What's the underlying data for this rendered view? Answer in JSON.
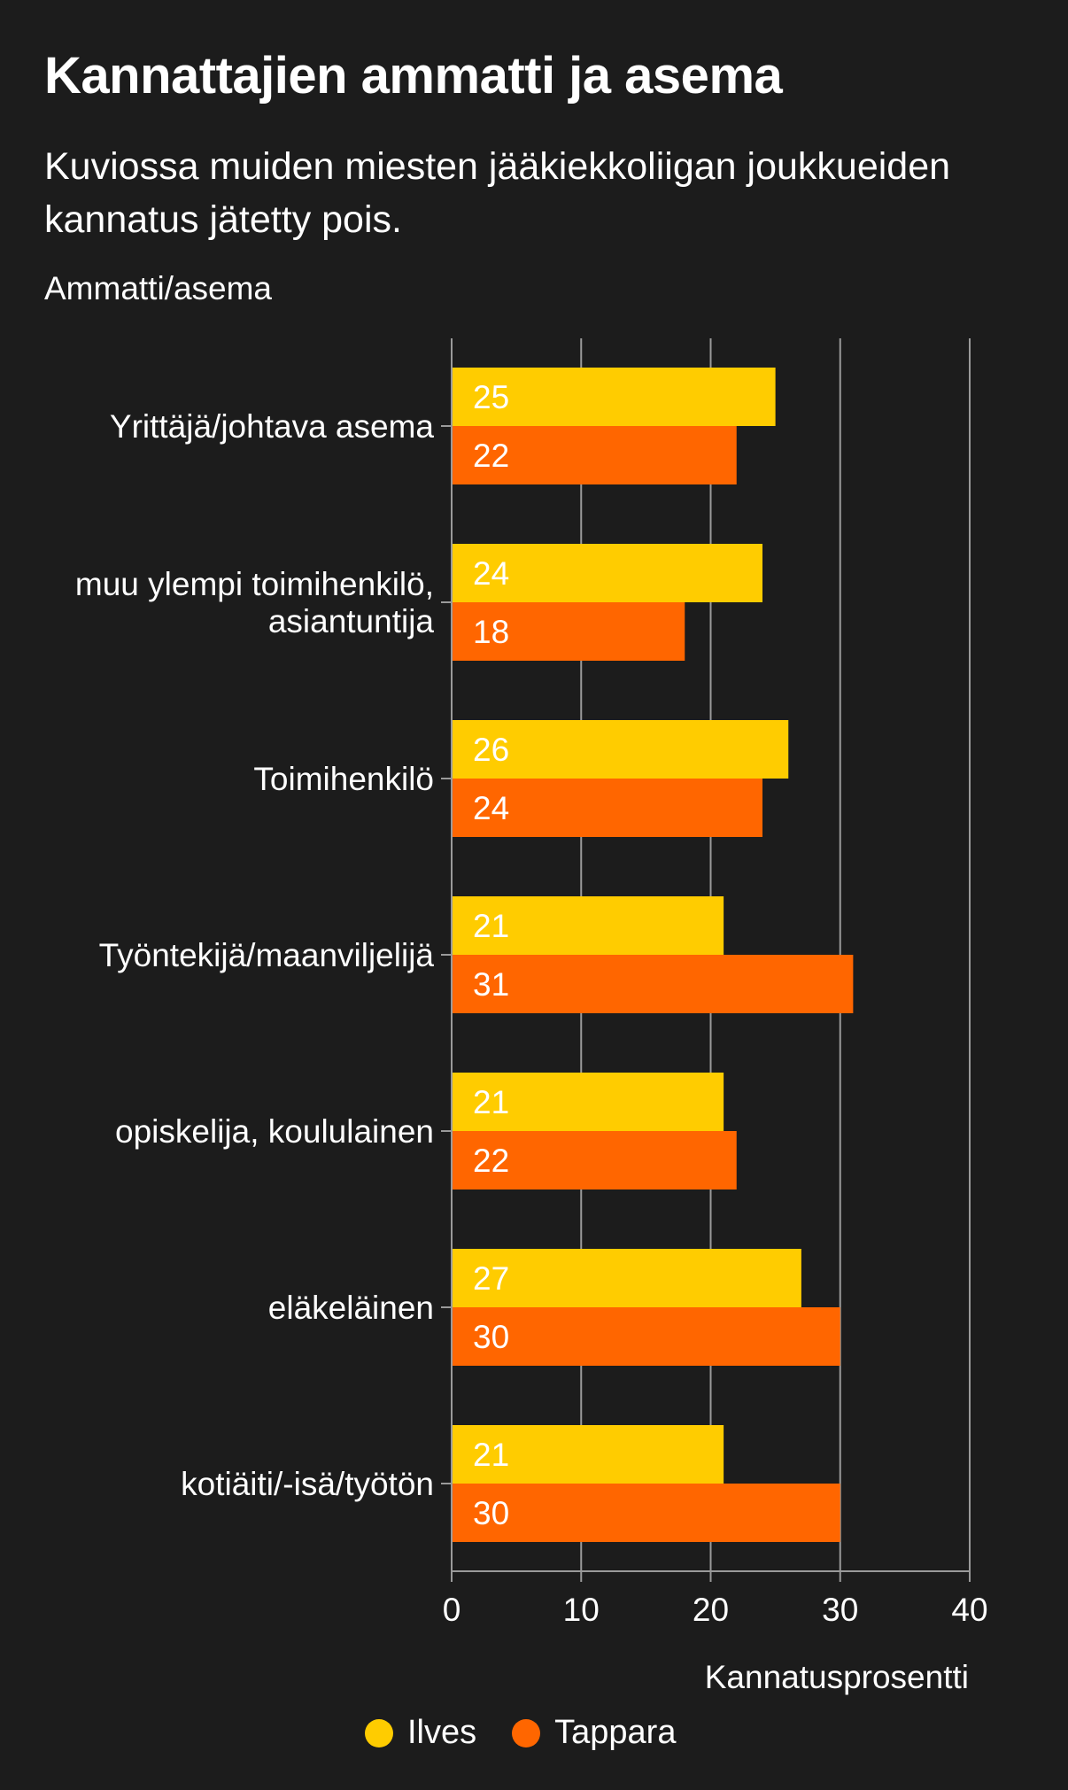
{
  "colors": {
    "background": "#1c1c1c",
    "ilves": "#ffcc00",
    "tappara": "#ff6600",
    "grid": "#9a9a9a",
    "text": "#ffffff"
  },
  "chart_data": {
    "type": "bar",
    "orientation": "horizontal",
    "title": "Kannattajien ammatti ja asema",
    "subtitle": "Kuviossa muiden miesten jääkiekkoliigan joukkueiden kannatus jätetty pois.",
    "ylabel": "Ammatti/asema",
    "xlabel": "Kannatusprosentti",
    "xlim": [
      0,
      40
    ],
    "xticks": [
      "0",
      "10",
      "20",
      "30",
      "40"
    ],
    "grid": true,
    "legend_position": "bottom",
    "categories": [
      [
        "Yrittäjä/johtava asema"
      ],
      [
        "muu ylempi toimihenkilö,",
        "asiantuntija"
      ],
      [
        "Toimihenkilö"
      ],
      [
        "Työntekijä/maanviljelijä"
      ],
      [
        "opiskelija, koululainen"
      ],
      [
        "eläkeläinen"
      ],
      [
        "kotiäiti/-isä/työtön"
      ]
    ],
    "series": [
      {
        "name": "Ilves",
        "color": "#ffcc00",
        "values": [
          25,
          24,
          26,
          21,
          21,
          27,
          21
        ]
      },
      {
        "name": "Tappara",
        "color": "#ff6600",
        "values": [
          22,
          18,
          24,
          31,
          22,
          30,
          30
        ]
      }
    ]
  }
}
